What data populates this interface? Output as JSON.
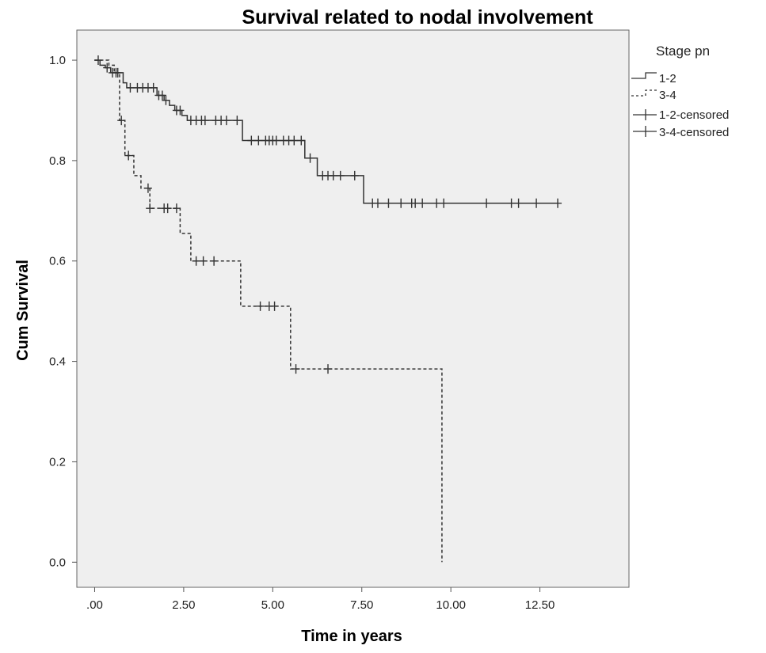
{
  "chart_data": {
    "type": "line",
    "title": "Survival related to nodal involvement",
    "xlabel": "Time in years",
    "ylabel": "Cum Survival",
    "xlim": [
      -0.5,
      15
    ],
    "ylim": [
      -0.05,
      1.06
    ],
    "x_ticks": [
      0,
      2.5,
      5,
      7.5,
      10,
      12.5
    ],
    "x_tick_labels": [
      ".00",
      "2.50",
      "5.00",
      "7.50",
      "10.00",
      "12.50"
    ],
    "y_ticks": [
      0,
      0.2,
      0.4,
      0.6,
      0.8,
      1.0
    ],
    "y_tick_labels": [
      "0.0",
      "0.2",
      "0.4",
      "0.6",
      "0.8",
      "1.0"
    ],
    "grid": false,
    "background": "#efefef",
    "legend": {
      "title": "Stage pn",
      "placement": "right",
      "entries": [
        "1-2",
        "3-4",
        "1-2-censored",
        "3-4-censored"
      ]
    },
    "series": [
      {
        "name": "1-2",
        "style": "solid",
        "color": "#333333",
        "steps": [
          [
            0,
            1.0
          ],
          [
            0.15,
            0.99
          ],
          [
            0.3,
            0.985
          ],
          [
            0.45,
            0.975
          ],
          [
            0.8,
            0.955
          ],
          [
            0.9,
            0.945
          ],
          [
            1.75,
            0.93
          ],
          [
            1.95,
            0.92
          ],
          [
            2.1,
            0.91
          ],
          [
            2.25,
            0.9
          ],
          [
            2.45,
            0.89
          ],
          [
            2.6,
            0.88
          ],
          [
            4.15,
            0.84
          ],
          [
            5.9,
            0.805
          ],
          [
            6.25,
            0.77
          ],
          [
            7.55,
            0.715
          ],
          [
            13.0,
            0.715
          ]
        ],
        "censored": [
          [
            0.1,
            1.0
          ],
          [
            0.35,
            0.985
          ],
          [
            0.5,
            0.975
          ],
          [
            0.6,
            0.975
          ],
          [
            1.0,
            0.945
          ],
          [
            1.2,
            0.945
          ],
          [
            1.35,
            0.945
          ],
          [
            1.5,
            0.945
          ],
          [
            1.65,
            0.945
          ],
          [
            1.8,
            0.93
          ],
          [
            1.9,
            0.93
          ],
          [
            2.0,
            0.92
          ],
          [
            2.3,
            0.9
          ],
          [
            2.4,
            0.9
          ],
          [
            2.7,
            0.88
          ],
          [
            2.85,
            0.88
          ],
          [
            3.0,
            0.88
          ],
          [
            3.1,
            0.88
          ],
          [
            3.4,
            0.88
          ],
          [
            3.55,
            0.88
          ],
          [
            3.7,
            0.88
          ],
          [
            4.0,
            0.88
          ],
          [
            4.4,
            0.84
          ],
          [
            4.6,
            0.84
          ],
          [
            4.8,
            0.84
          ],
          [
            4.9,
            0.84
          ],
          [
            5.0,
            0.84
          ],
          [
            5.1,
            0.84
          ],
          [
            5.3,
            0.84
          ],
          [
            5.45,
            0.84
          ],
          [
            5.6,
            0.84
          ],
          [
            5.8,
            0.84
          ],
          [
            6.05,
            0.805
          ],
          [
            6.4,
            0.77
          ],
          [
            6.55,
            0.77
          ],
          [
            6.7,
            0.77
          ],
          [
            6.9,
            0.77
          ],
          [
            7.3,
            0.77
          ],
          [
            7.8,
            0.715
          ],
          [
            7.95,
            0.715
          ],
          [
            8.25,
            0.715
          ],
          [
            8.6,
            0.715
          ],
          [
            8.9,
            0.715
          ],
          [
            9.0,
            0.715
          ],
          [
            9.2,
            0.715
          ],
          [
            9.6,
            0.715
          ],
          [
            9.8,
            0.715
          ],
          [
            11.0,
            0.715
          ],
          [
            11.7,
            0.715
          ],
          [
            11.9,
            0.715
          ],
          [
            12.4,
            0.715
          ],
          [
            13.0,
            0.715
          ]
        ]
      },
      {
        "name": "3-4",
        "style": "dashed",
        "color": "#333333",
        "steps": [
          [
            0,
            1.0
          ],
          [
            0.4,
            0.99
          ],
          [
            0.55,
            0.975
          ],
          [
            0.7,
            0.88
          ],
          [
            0.85,
            0.81
          ],
          [
            1.1,
            0.77
          ],
          [
            1.3,
            0.745
          ],
          [
            1.55,
            0.705
          ],
          [
            2.4,
            0.655
          ],
          [
            2.7,
            0.6
          ],
          [
            4.1,
            0.51
          ],
          [
            5.5,
            0.385
          ],
          [
            9.75,
            0.0
          ]
        ],
        "censored": [
          [
            0.65,
            0.975
          ],
          [
            0.75,
            0.88
          ],
          [
            0.95,
            0.81
          ],
          [
            1.5,
            0.745
          ],
          [
            1.55,
            0.705
          ],
          [
            1.95,
            0.705
          ],
          [
            2.05,
            0.705
          ],
          [
            2.3,
            0.705
          ],
          [
            2.85,
            0.6
          ],
          [
            3.05,
            0.6
          ],
          [
            3.35,
            0.6
          ],
          [
            4.65,
            0.51
          ],
          [
            4.9,
            0.51
          ],
          [
            5.05,
            0.51
          ],
          [
            5.65,
            0.385
          ],
          [
            6.55,
            0.385
          ]
        ]
      }
    ]
  }
}
